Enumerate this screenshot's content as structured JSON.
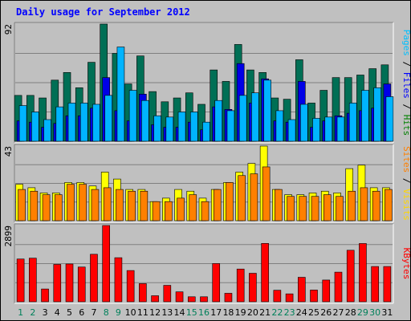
{
  "chart_data": {
    "title": "Daily usage for September 2012",
    "type": "bar",
    "days": [
      "1",
      "2",
      "3",
      "4",
      "5",
      "6",
      "7",
      "8",
      "9",
      "10",
      "11",
      "12",
      "13",
      "14",
      "15",
      "16",
      "17",
      "18",
      "19",
      "20",
      "21",
      "22",
      "23",
      "24",
      "25",
      "26",
      "27",
      "28",
      "29",
      "30",
      "31"
    ],
    "weekend_days": [
      "1",
      "2",
      "8",
      "9",
      "15",
      "16",
      "22",
      "23",
      "29",
      "30"
    ],
    "panels": [
      {
        "id": "hits-files-pages",
        "max_label": "92",
        "max": 92,
        "labels": [
          "Pages",
          "Files",
          "Hits"
        ],
        "series": [
          {
            "name": "Hits",
            "color": "#006f55",
            "values": [
              36,
              36,
              34,
              48,
              54,
              42,
              62,
              92,
              69,
              45,
              67,
              39,
              31,
              34,
              38,
              29,
              56,
              47,
              76,
              56,
              54,
              34,
              33,
              64,
              30,
              40,
              50,
              50,
              52,
              57,
              60
            ]
          },
          {
            "name": "Files",
            "color": "#0000e6",
            "values": [
              16,
              15,
              11,
              14,
              20,
              20,
              26,
              50,
              24,
              16,
              37,
              13,
              11,
              11,
              15,
              9,
              27,
              25,
              61,
              30,
              49,
              16,
              15,
              47,
              11,
              16,
              20,
              22,
              24,
              26,
              45
            ]
          },
          {
            "name": "Pages",
            "color": "#00b4ff",
            "values": [
              28,
              23,
              17,
              27,
              30,
              30,
              29,
              36,
              74,
              40,
              32,
              20,
              19,
              23,
              23,
              15,
              32,
              24,
              36,
              38,
              48,
              24,
              17,
              29,
              18,
              19,
              19,
              30,
              40,
              42,
              35
            ]
          }
        ]
      },
      {
        "id": "visits-sites",
        "max_label": "43",
        "max": 43,
        "labels": [
          "Sites",
          "Visits"
        ],
        "series": [
          {
            "name": "Visits",
            "color": "#ffff00",
            "values": [
              21,
              19,
              16,
              16,
              22,
              22,
              20,
              28,
              24,
              18,
              18,
              11,
              13,
              18,
              17,
              13,
              18,
              22,
              28,
              33,
              43,
              18,
              15,
              15,
              16,
              17,
              16,
              30,
              32,
              19,
              19
            ]
          },
          {
            "name": "Sites",
            "color": "#ff8000",
            "values": [
              18,
              17,
              15,
              15,
              21,
              21,
              18,
              19,
              18,
              17,
              17,
              11,
              11,
              13,
              15,
              11,
              18,
              22,
              26,
              27,
              31,
              18,
              14,
              14,
              14,
              15,
              14,
              17,
              19,
              17,
              18
            ]
          }
        ]
      },
      {
        "id": "kbytes",
        "max_label": "2899",
        "max": 2899,
        "labels": [
          "KBytes"
        ],
        "series": [
          {
            "name": "KBytes",
            "color": "#ff0000",
            "values": [
              1625,
              1657,
              485,
              1420,
              1436,
              1320,
              1805,
              2899,
              1675,
              1187,
              689,
              229,
              624,
              377,
              189,
              189,
              1452,
              322,
              1244,
              1083,
              2218,
              438,
              300,
              930,
              445,
              826,
              1126,
              1958,
              2214,
              1340,
              1340
            ]
          }
        ]
      }
    ]
  }
}
